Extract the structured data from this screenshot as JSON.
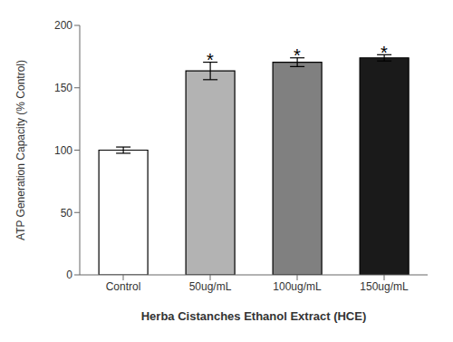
{
  "chart_data": {
    "type": "bar",
    "categories": [
      "Control",
      "50ug/mL",
      "100ug/mL",
      "150ug/mL"
    ],
    "values": [
      100.0,
      163.5,
      170.5,
      174.0
    ],
    "errors": [
      2.5,
      7.0,
      3.5,
      2.5
    ],
    "colors": [
      "#ffffff",
      "#b3b3b3",
      "#808080",
      "#1a1a1a"
    ],
    "ylabel": "ATP Generation Capacity (% Control)",
    "xlabel": "Herba Cistanches Ethanol Extract (HCE)",
    "ylim": [
      0,
      200
    ],
    "yticks": [
      0,
      50,
      100,
      150,
      200
    ],
    "grid": false,
    "annotations": [
      {
        "x": "50ug/mL",
        "y": 174.5,
        "text": "*"
      },
      {
        "x": "100ug/mL",
        "y": 178,
        "text": "*"
      },
      {
        "x": "150ug/mL",
        "y": 180.5,
        "text": "*"
      }
    ]
  }
}
